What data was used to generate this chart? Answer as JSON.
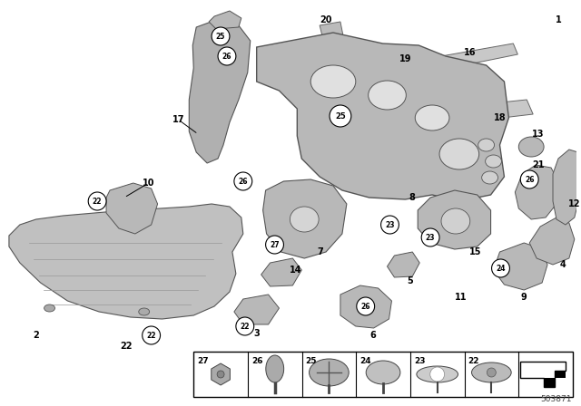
{
  "bg_color": "#ffffff",
  "diagram_id": "503871",
  "part_color": "#c0c0c0",
  "part_edge": "#666666",
  "part_dark": "#a0a0a0",
  "part_light": "#d8d8d8"
}
